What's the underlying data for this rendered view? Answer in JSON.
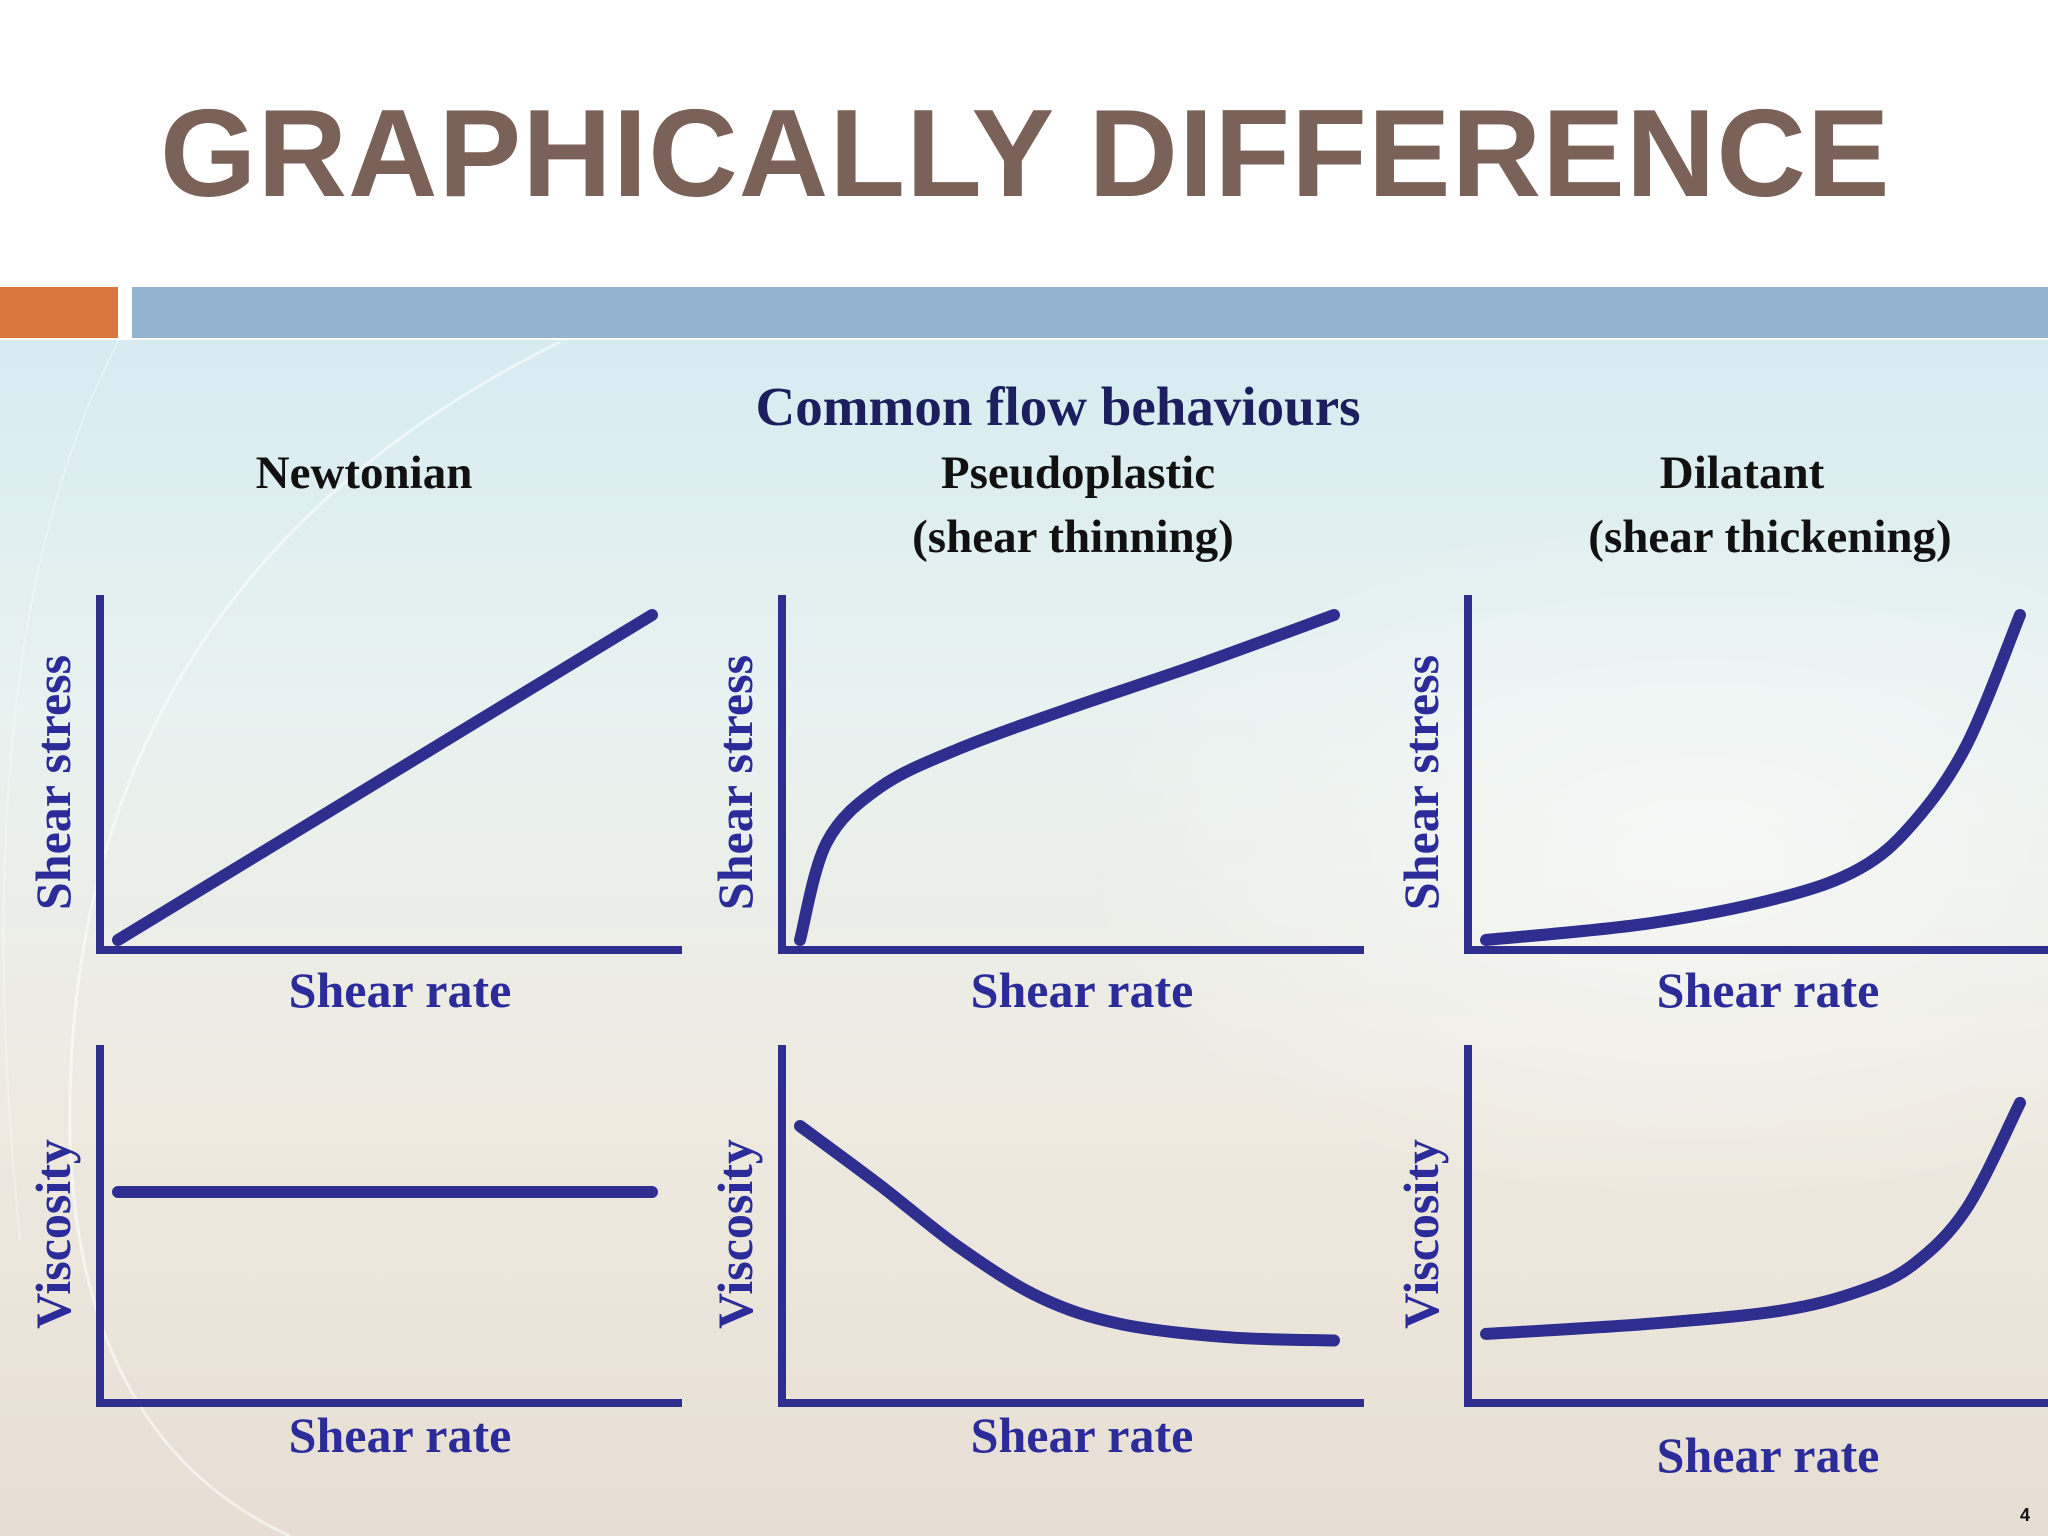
{
  "slide": {
    "title": "GRAPHICALLY DIFFERENCE",
    "page_number": "4",
    "colors": {
      "title": "#7a6258",
      "accent_bar": "#d9773f",
      "main_bar": "#93b3cf"
    }
  },
  "figure": {
    "heading": "Common flow behaviours",
    "colors": {
      "heading": "#1b1f5e",
      "label": "#2b2c9a",
      "curve": "#2e2e8f",
      "axis": "#2e2e8f",
      "title": "#111111"
    },
    "columns": [
      {
        "title_line1": "Newtonian",
        "title_line2": ""
      },
      {
        "title_line1": "Pseudoplastic",
        "title_line2": "(shear thinning)"
      },
      {
        "title_line1": "Dilatant",
        "title_line2": "(shear thickening)"
      }
    ],
    "labels": {
      "shear_stress": "Shear stress",
      "viscosity": "Viscosity",
      "shear_rate": "Shear rate"
    }
  },
  "chart_data": [
    {
      "type": "line",
      "title": "Newtonian",
      "xlabel": "Shear rate",
      "ylabel": "Shear stress",
      "shape": "linear",
      "series": [
        {
          "x": [
            0,
            1
          ],
          "y": [
            0,
            1
          ]
        }
      ]
    },
    {
      "type": "line",
      "title": "Pseudoplastic (shear thinning)",
      "xlabel": "Shear rate",
      "ylabel": "Shear stress",
      "shape": "concave-down",
      "series": [
        {
          "x": [
            0,
            0.05,
            0.15,
            0.3,
            0.5,
            0.75,
            1
          ],
          "y": [
            0,
            0.3,
            0.47,
            0.59,
            0.71,
            0.85,
            1
          ]
        }
      ]
    },
    {
      "type": "line",
      "title": "Dilatant (shear thickening)",
      "xlabel": "Shear rate",
      "ylabel": "Shear stress",
      "shape": "concave-up",
      "series": [
        {
          "x": [
            0,
            0.3,
            0.55,
            0.7,
            0.8,
            0.9,
            1
          ],
          "y": [
            0,
            0.05,
            0.13,
            0.22,
            0.36,
            0.6,
            1
          ]
        }
      ]
    },
    {
      "type": "line",
      "title": "Newtonian",
      "xlabel": "Shear rate",
      "ylabel": "Viscosity",
      "shape": "constant",
      "series": [
        {
          "x": [
            0,
            1
          ],
          "y": [
            0.6,
            0.6
          ]
        }
      ]
    },
    {
      "type": "line",
      "title": "Pseudoplastic (shear thinning)",
      "xlabel": "Shear rate",
      "ylabel": "Viscosity",
      "shape": "decreasing",
      "series": [
        {
          "x": [
            0,
            0.15,
            0.3,
            0.45,
            0.6,
            0.8,
            1
          ],
          "y": [
            0.8,
            0.62,
            0.43,
            0.28,
            0.2,
            0.16,
            0.15
          ]
        }
      ]
    },
    {
      "type": "line",
      "title": "Dilatant (shear thickening)",
      "xlabel": "Shear rate",
      "ylabel": "Viscosity",
      "shape": "increasing",
      "series": [
        {
          "x": [
            0,
            0.3,
            0.55,
            0.7,
            0.8,
            0.9,
            1
          ],
          "y": [
            0.17,
            0.2,
            0.24,
            0.3,
            0.38,
            0.55,
            0.87
          ]
        }
      ]
    }
  ]
}
